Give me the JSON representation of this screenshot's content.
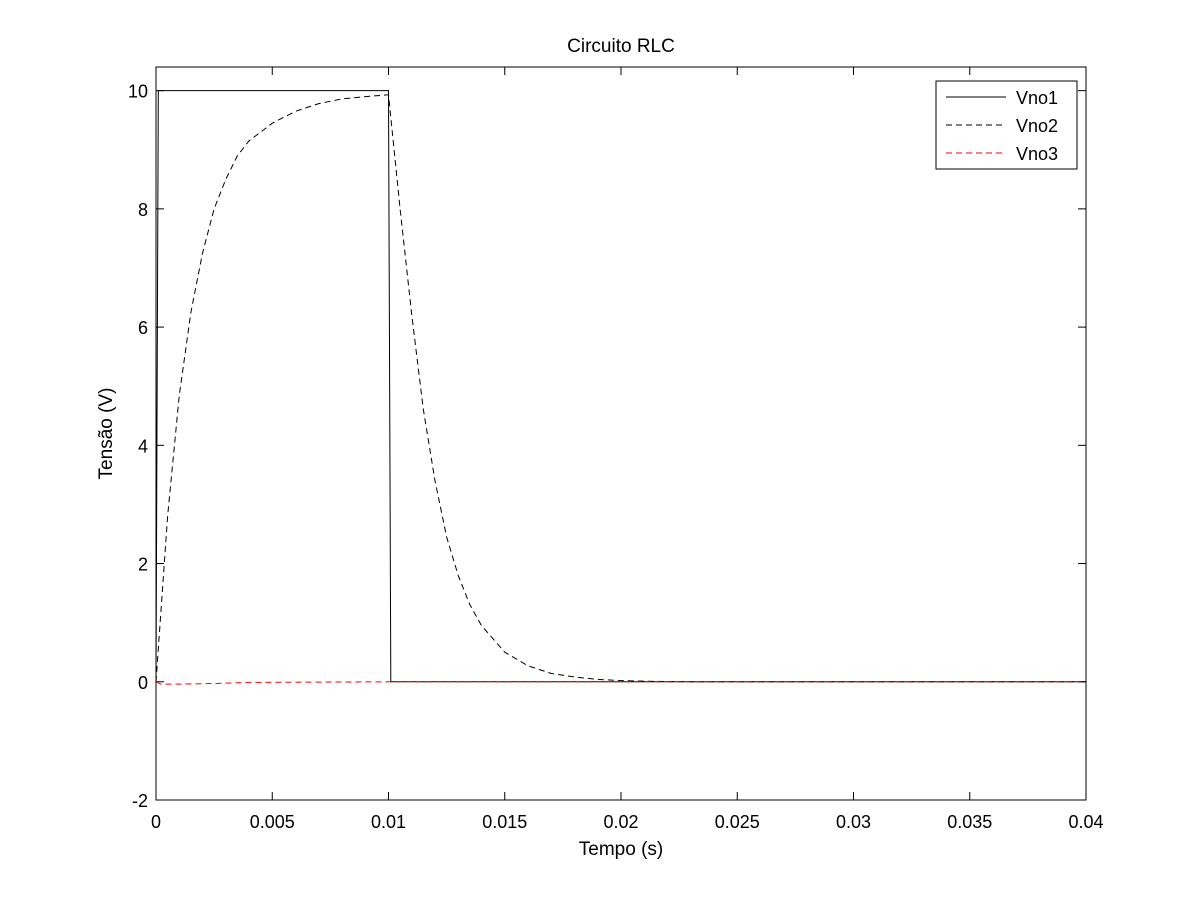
{
  "chart_data": {
    "type": "line",
    "title": "Circuito RLC",
    "xlabel": "Tempo (s)",
    "ylabel": "Tensão (V)",
    "xlim": [
      0,
      0.04
    ],
    "ylim": [
      -2,
      10.4
    ],
    "xticks": [
      0,
      0.005,
      0.01,
      0.015,
      0.02,
      0.025,
      0.03,
      0.035,
      0.04
    ],
    "xtick_labels": [
      "0",
      "0.005",
      "0.01",
      "0.015",
      "0.02",
      "0.025",
      "0.03",
      "0.035",
      "0.04"
    ],
    "yticks": [
      -2,
      0,
      2,
      4,
      6,
      8,
      10
    ],
    "ytick_labels": [
      "-2",
      "0",
      "2",
      "4",
      "6",
      "8",
      "10"
    ],
    "grid": false,
    "legend_position": "top-right",
    "series": [
      {
        "name": "Vno1",
        "color": "#000000",
        "style": "solid",
        "x": [
          0,
          0.0001,
          0.01,
          0.0101,
          0.04
        ],
        "y": [
          0,
          10,
          10,
          0,
          0
        ]
      },
      {
        "name": "Vno2",
        "color": "#000000",
        "style": "dashed",
        "x": [
          0,
          0.0005,
          0.001,
          0.0015,
          0.002,
          0.0025,
          0.003,
          0.0035,
          0.004,
          0.005,
          0.006,
          0.007,
          0.008,
          0.009,
          0.01,
          0.0105,
          0.011,
          0.0115,
          0.012,
          0.0125,
          0.013,
          0.0135,
          0.014,
          0.015,
          0.016,
          0.017,
          0.018,
          0.019,
          0.02,
          0.021,
          0.022,
          0.023,
          0.024,
          0.025,
          0.03,
          0.035,
          0.04
        ],
        "y": [
          0,
          2.8,
          4.85,
          6.25,
          7.25,
          8.0,
          8.5,
          8.9,
          9.15,
          9.45,
          9.65,
          9.78,
          9.86,
          9.9,
          9.93,
          8.0,
          6.2,
          4.6,
          3.4,
          2.45,
          1.8,
          1.3,
          0.95,
          0.5,
          0.27,
          0.14,
          0.08,
          0.04,
          0.02,
          0.01,
          0.005,
          0.002,
          0.001,
          0,
          0,
          0,
          0
        ]
      },
      {
        "name": "Vno3",
        "color": "#ff0000",
        "style": "dashed",
        "x": [
          0,
          0.0002,
          0.001,
          0.0025,
          0.004,
          0.01,
          0.02,
          0.04
        ],
        "y": [
          0,
          -0.04,
          -0.04,
          -0.03,
          -0.01,
          0,
          0,
          0
        ]
      }
    ]
  }
}
